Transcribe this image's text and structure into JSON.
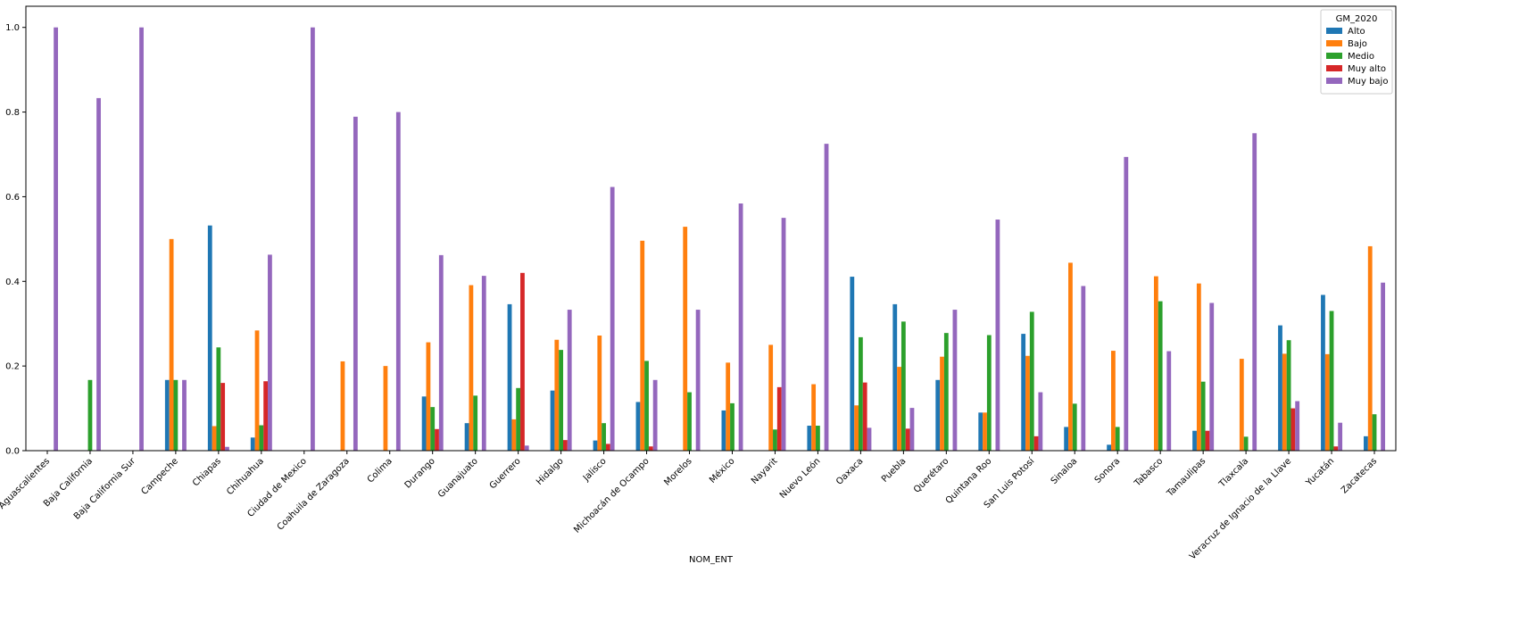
{
  "chart_data": {
    "type": "bar",
    "title": "",
    "xlabel": "NOM_ENT",
    "ylabel": "",
    "ylim": [
      0,
      1.05
    ],
    "yticks": [
      "0.0",
      "0.2",
      "0.4",
      "0.6",
      "0.8",
      "1.0"
    ],
    "grid": false,
    "legend": {
      "title": "GM_2020",
      "placement": "top-right"
    },
    "categories": [
      "Aguascalientes",
      "Baja California",
      "Baja California Sur",
      "Campeche",
      "Chiapas",
      "Chihuahua",
      "Ciudad de Mexico",
      "Coahuila de Zaragoza",
      "Colima",
      "Durango",
      "Guanajuato",
      "Guerrero",
      "Hidalgo",
      "Jalisco",
      "Michoacán de Ocampo",
      "Morelos",
      "México",
      "Nayarit",
      "Nuevo León",
      "Oaxaca",
      "Puebla",
      "Querétaro",
      "Quintana Roo",
      "San Luis Potosí",
      "Sinaloa",
      "Sonora",
      "Tabasco",
      "Tamaulipas",
      "Tlaxcala",
      "Veracruz de Ignacio de la Llave",
      "Yucatán",
      "Zacatecas"
    ],
    "series": [
      {
        "name": "Alto",
        "color": "#1f77b4",
        "values": [
          0,
          0,
          0,
          0.167,
          0.532,
          0.031,
          0,
          0,
          0,
          0.128,
          0.065,
          0.346,
          0.142,
          0.024,
          0.115,
          0,
          0.095,
          0,
          0.059,
          0.411,
          0.346,
          0.167,
          0.09,
          0.276,
          0.056,
          0.014,
          0,
          0.047,
          0,
          0.296,
          0.368,
          0.034
        ]
      },
      {
        "name": "Bajo",
        "color": "#ff7f0e",
        "values": [
          0,
          0,
          0,
          0.5,
          0.058,
          0.284,
          0,
          0.211,
          0.2,
          0.256,
          0.391,
          0.074,
          0.262,
          0.272,
          0.496,
          0.529,
          0.208,
          0.25,
          0.157,
          0.107,
          0.198,
          0.222,
          0.09,
          0.224,
          0.444,
          0.236,
          0.412,
          0.395,
          0.217,
          0.229,
          0.228,
          0.483
        ]
      },
      {
        "name": "Medio",
        "color": "#2ca02c",
        "values": [
          0,
          0.167,
          0,
          0.167,
          0.244,
          0.06,
          0,
          0,
          0,
          0.103,
          0.13,
          0.148,
          0.238,
          0.065,
          0.212,
          0.138,
          0.112,
          0.05,
          0.059,
          0.268,
          0.305,
          0.278,
          0.273,
          0.328,
          0.111,
          0.056,
          0.353,
          0.163,
          0.033,
          0.261,
          0.33,
          0.086
        ]
      },
      {
        "name": "Muy alto",
        "color": "#d62728",
        "values": [
          0,
          0,
          0,
          0,
          0.16,
          0.164,
          0,
          0,
          0,
          0.051,
          0,
          0.42,
          0.025,
          0.016,
          0.01,
          0,
          0,
          0.15,
          0,
          0.161,
          0.052,
          0,
          0,
          0.034,
          0,
          0,
          0,
          0.047,
          0,
          0.1,
          0.01,
          0
        ]
      },
      {
        "name": "Muy bajo",
        "color": "#9467bd",
        "values": [
          1.0,
          0.833,
          1.0,
          0.167,
          0.009,
          0.463,
          1.0,
          0.789,
          0.8,
          0.462,
          0.413,
          0.012,
          0.333,
          0.623,
          0.167,
          0.333,
          0.584,
          0.55,
          0.725,
          0.054,
          0.101,
          0.333,
          0.546,
          0.138,
          0.389,
          0.694,
          0.235,
          0.349,
          0.75,
          0.117,
          0.066,
          0.397
        ]
      }
    ]
  }
}
